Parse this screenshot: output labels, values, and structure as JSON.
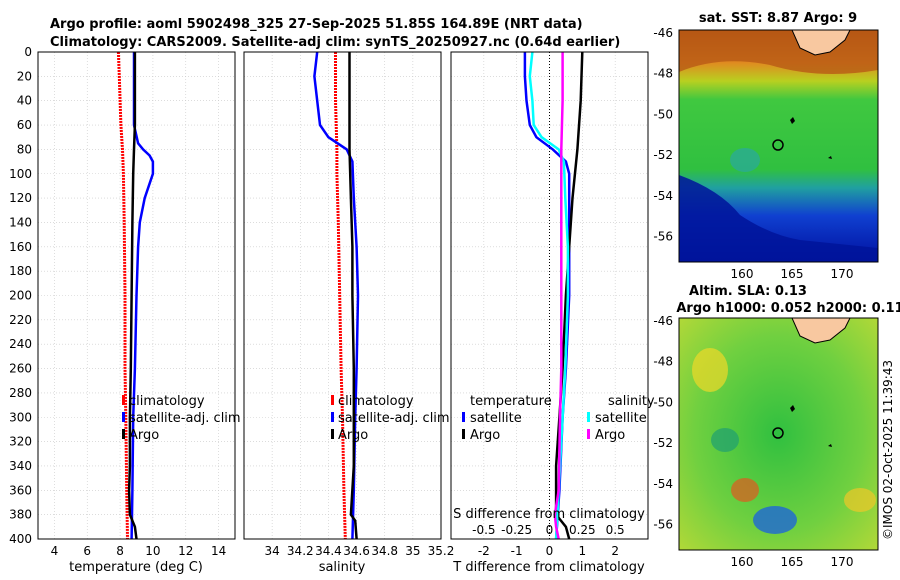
{
  "titles": {
    "line1": "Argo profile: aoml 5902498_325 27-Sep-2025 51.85S 164.89E (NRT data)",
    "line2": "Climatology: CARS2009. Satellite-adj clim: synTS_20250927.nc (0.64d earlier)",
    "map1": "sat. SST: 8.87 Argo: 9",
    "map2a": "Altim. SLA: 0.13",
    "map2b": "Argo h1000: 0.052 h2000: 0.11",
    "stamp": "©IMOS 02-Oct-2025 11:39:43"
  },
  "depth_ticks": [
    "0",
    "20",
    "40",
    "60",
    "80",
    "100",
    "120",
    "140",
    "160",
    "180",
    "200",
    "220",
    "240",
    "260",
    "280",
    "300",
    "320",
    "340",
    "360",
    "380",
    "400"
  ],
  "colors": {
    "climatology": "#ff0000",
    "satellite": "#0000ff",
    "argo": "#000000",
    "t_sat": "#00ffff",
    "s_sat": "#ff00ff"
  },
  "chart_data": [
    {
      "type": "line",
      "xlabel": "temperature (deg C)",
      "ylabel": "depth",
      "xlim": [
        3,
        15
      ],
      "ylim": [
        400,
        0
      ],
      "xticks": [
        4,
        6,
        8,
        10,
        12,
        14
      ],
      "xtick_labels": [
        "4",
        "6",
        "8",
        "10",
        "12",
        "14"
      ],
      "legend": [
        "climatology",
        "satellite-adj. clim",
        "Argo"
      ],
      "series": [
        {
          "name": "climatology",
          "depth": [
            0,
            20,
            40,
            60,
            80,
            100,
            140,
            200,
            260,
            300,
            360,
            400
          ],
          "values": [
            7.9,
            7.95,
            8.0,
            8.05,
            8.15,
            8.2,
            8.25,
            8.3,
            8.3,
            8.35,
            8.4,
            8.45
          ]
        },
        {
          "name": "satellite-adj. clim",
          "depth": [
            0,
            60,
            75,
            80,
            85,
            90,
            100,
            120,
            140,
            160,
            200,
            260,
            300,
            360,
            400
          ],
          "values": [
            8.85,
            8.85,
            9.1,
            9.4,
            9.8,
            10.0,
            10.0,
            9.5,
            9.2,
            9.1,
            9.0,
            8.9,
            8.8,
            8.75,
            8.7
          ]
        },
        {
          "name": "Argo",
          "depth": [
            0,
            40,
            60,
            80,
            100,
            140,
            200,
            260,
            300,
            340,
            360,
            380,
            390,
            400
          ],
          "values": [
            8.9,
            8.9,
            8.9,
            8.85,
            8.8,
            8.75,
            8.7,
            8.65,
            8.6,
            8.6,
            8.55,
            8.6,
            8.9,
            9.0
          ]
        }
      ]
    },
    {
      "type": "line",
      "xlabel": "salinity",
      "ylabel": "depth",
      "xlim": [
        33.8,
        35.2
      ],
      "ylim": [
        400,
        0
      ],
      "xticks": [
        34,
        34.2,
        34.4,
        34.6,
        34.8,
        35,
        35.2
      ],
      "xtick_labels": [
        "34",
        "34.2",
        "34.4",
        "34.6",
        "34.8",
        "35",
        "35.2"
      ],
      "legend": [
        "climatology",
        "satellite-adj. clim",
        "Argo"
      ],
      "series": [
        {
          "name": "climatology",
          "depth": [
            0,
            40,
            80,
            100,
            140,
            200,
            260,
            300,
            360,
            400
          ],
          "values": [
            34.45,
            34.45,
            34.46,
            34.46,
            34.47,
            34.48,
            34.49,
            34.5,
            34.51,
            34.52
          ]
        },
        {
          "name": "satellite-adj. clim",
          "depth": [
            0,
            20,
            40,
            60,
            70,
            80,
            90,
            120,
            160,
            200,
            260,
            300,
            360,
            400
          ],
          "values": [
            34.32,
            34.3,
            34.32,
            34.34,
            34.4,
            34.53,
            34.57,
            34.58,
            34.6,
            34.61,
            34.6,
            34.59,
            34.58,
            34.57
          ]
        },
        {
          "name": "Argo",
          "depth": [
            0,
            40,
            80,
            120,
            160,
            200,
            260,
            300,
            340,
            380,
            385,
            400
          ],
          "values": [
            34.55,
            34.55,
            34.55,
            34.56,
            34.57,
            34.57,
            34.58,
            34.58,
            34.58,
            34.56,
            34.59,
            34.6
          ]
        }
      ]
    },
    {
      "type": "line",
      "xlabel": "T difference from climatology",
      "xlabel2": "S difference from climatology",
      "ylabel": "depth",
      "xlim": [
        -3,
        3
      ],
      "ylim": [
        400,
        0
      ],
      "xticks": [
        -2,
        -1,
        0,
        1,
        2
      ],
      "xtick_labels": [
        "-2",
        "-1",
        "0",
        "1",
        "2"
      ],
      "s_ticks": [
        -0.5,
        -0.25,
        0,
        0.25,
        0.5
      ],
      "s_tick_labels": [
        "-0.5",
        "-0.25",
        "0",
        "0.25",
        "0.5"
      ],
      "legend_headers": [
        "temperature",
        "salinity"
      ],
      "legend": [
        "satellite",
        "Argo",
        "satellite",
        "Argo"
      ],
      "series": [
        {
          "name": "temperature satellite",
          "depth": [
            0,
            20,
            40,
            60,
            70,
            80,
            90,
            100,
            140,
            200,
            260,
            300,
            360,
            400
          ],
          "values": [
            -0.75,
            -0.75,
            -0.7,
            -0.6,
            -0.4,
            0.1,
            0.5,
            0.6,
            0.6,
            0.6,
            0.5,
            0.4,
            0.3,
            0.2
          ]
        },
        {
          "name": "temperature Argo",
          "depth": [
            0,
            40,
            80,
            120,
            160,
            200,
            260,
            300,
            340,
            380,
            390,
            400
          ],
          "values": [
            1.0,
            0.95,
            0.85,
            0.7,
            0.6,
            0.5,
            0.4,
            0.3,
            0.2,
            0.2,
            0.5,
            0.6
          ]
        },
        {
          "name": "salinity satellite",
          "depth": [
            0,
            20,
            40,
            60,
            70,
            80,
            90,
            120,
            160,
            200,
            260,
            300,
            360,
            400
          ],
          "values": [
            -0.13,
            -0.15,
            -0.13,
            -0.12,
            -0.06,
            0.07,
            0.11,
            0.12,
            0.14,
            0.14,
            0.12,
            0.1,
            0.07,
            0.05
          ]
        },
        {
          "name": "salinity Argo",
          "depth": [
            0,
            40,
            80,
            120,
            160,
            200,
            260,
            300,
            360,
            380,
            390,
            400
          ],
          "values": [
            0.1,
            0.1,
            0.09,
            0.09,
            0.09,
            0.09,
            0.09,
            0.08,
            0.07,
            0.04,
            0.05,
            0.07
          ]
        }
      ]
    }
  ],
  "maps": [
    {
      "lat_ticks": [
        "-46",
        "-48",
        "-50",
        "-52",
        "-54",
        "-56"
      ],
      "lon_ticks": [
        "160",
        "165",
        "170"
      ]
    },
    {
      "lat_ticks": [
        "-46",
        "-48",
        "-50",
        "-52",
        "-54",
        "-56"
      ],
      "lon_ticks": [
        "160",
        "165",
        "170"
      ]
    }
  ]
}
